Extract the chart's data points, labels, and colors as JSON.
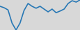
{
  "x": [
    0,
    1,
    2,
    3,
    4,
    5,
    6,
    7,
    8,
    9,
    10,
    11,
    12,
    13,
    14,
    15,
    16,
    17,
    18,
    19,
    20
  ],
  "y": [
    1.5,
    1.0,
    0.2,
    -4.5,
    -7.0,
    -4.5,
    0.0,
    2.5,
    1.5,
    0.8,
    1.5,
    0.5,
    -0.5,
    0.5,
    -0.8,
    -0.2,
    0.5,
    2.5,
    3.5,
    3.0,
    3.8
  ],
  "line_color": "#2878b5",
  "background_color": "#d8d8d8",
  "linewidth": 1.2
}
